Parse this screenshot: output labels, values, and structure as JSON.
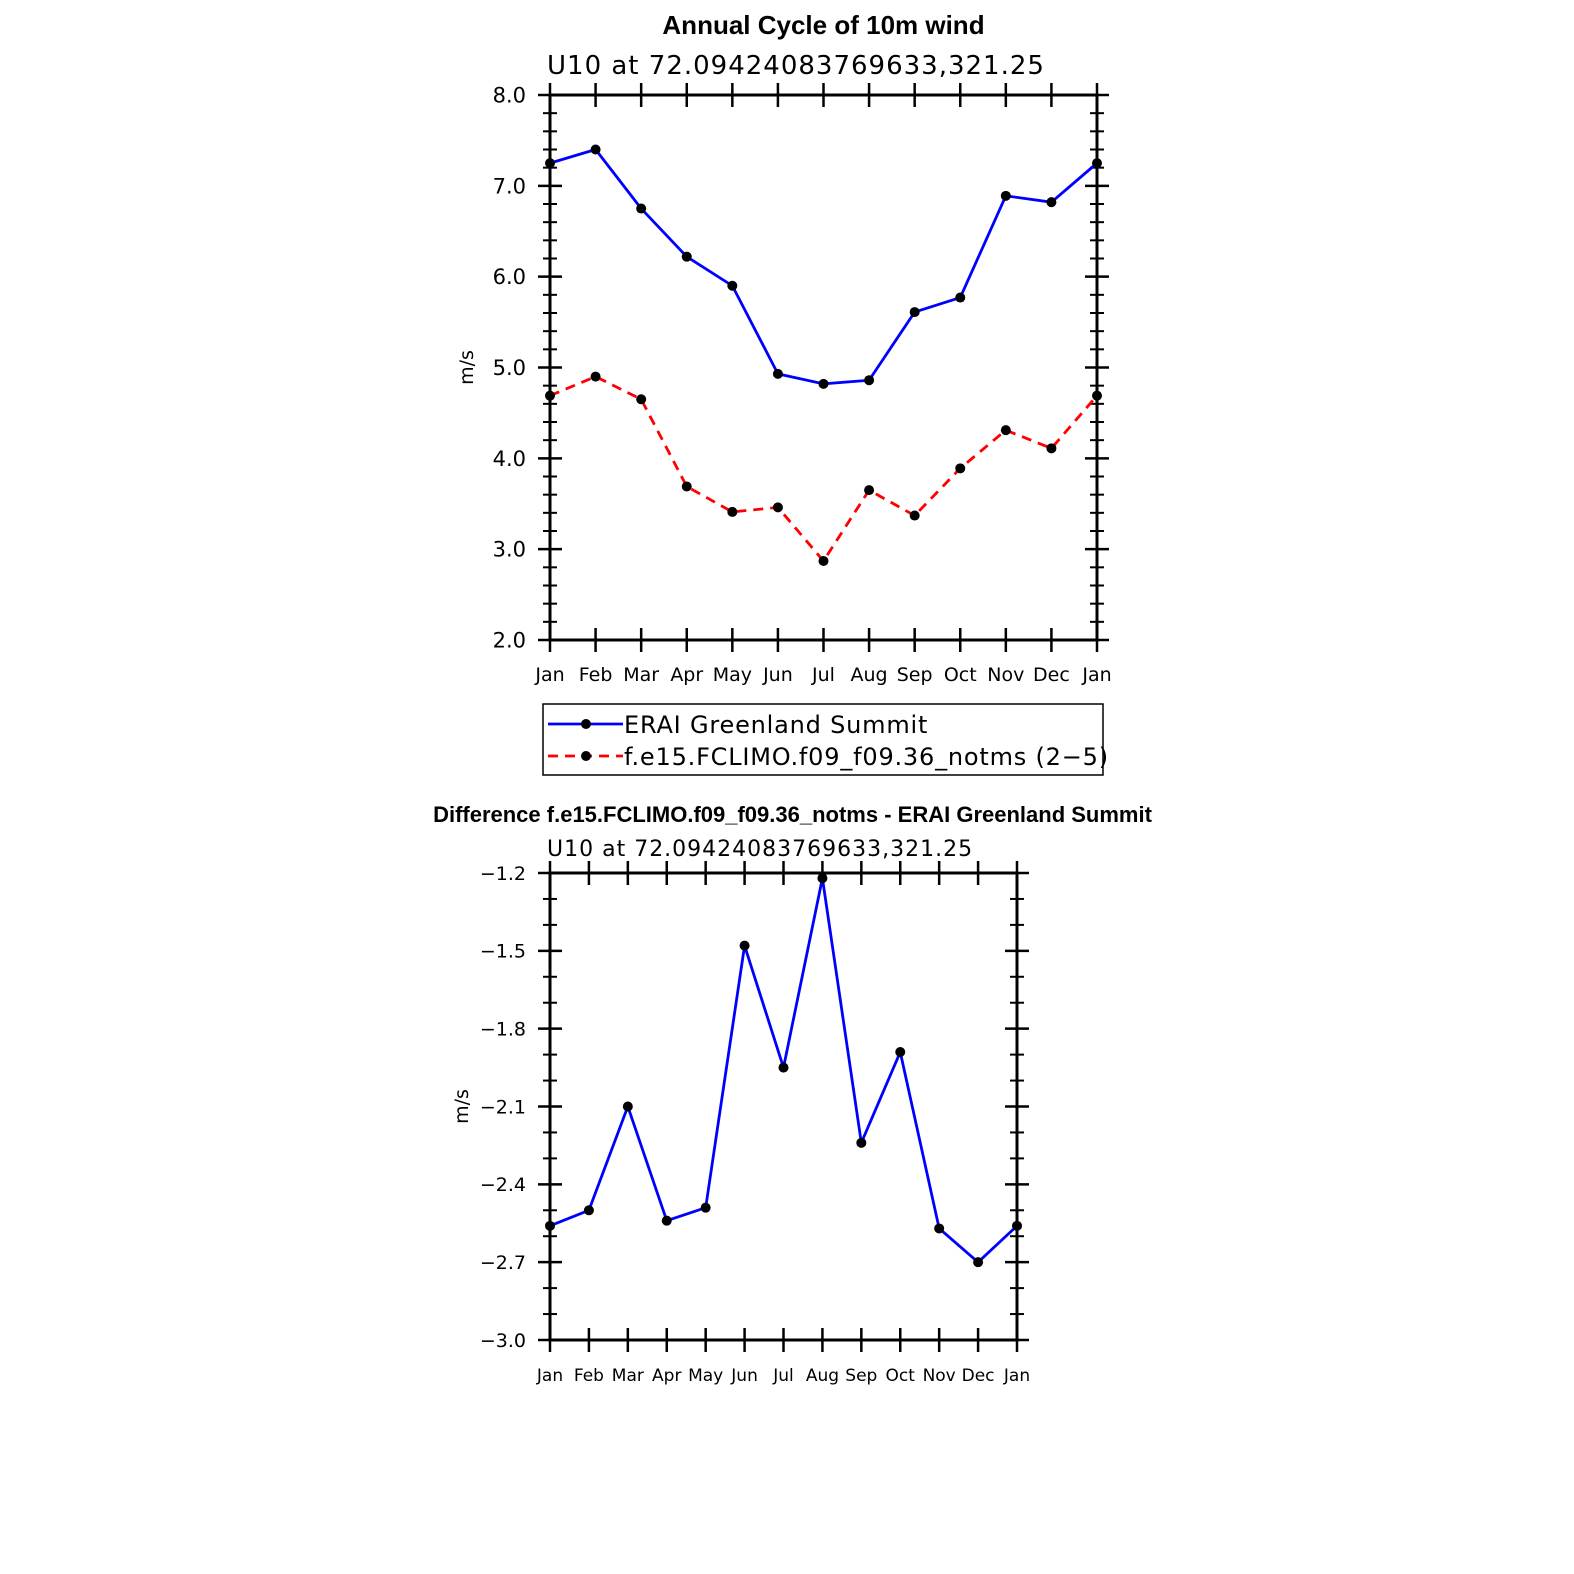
{
  "chart_data": [
    {
      "type": "line",
      "title": "Annual Cycle of 10m wind",
      "subtitle": "U10  at  72.09424083769633,321.25",
      "xlabel": "",
      "ylabel": "m/s",
      "categories": [
        "Jan",
        "Feb",
        "Mar",
        "Apr",
        "May",
        "Jun",
        "Jul",
        "Aug",
        "Sep",
        "Oct",
        "Nov",
        "Dec",
        "Jan"
      ],
      "ylim": [
        2.0,
        8.0
      ],
      "yticks": [
        "2.0",
        "3.0",
        "4.0",
        "5.0",
        "6.0",
        "7.0",
        "8.0"
      ],
      "grid": false,
      "legend_position": "below",
      "series": [
        {
          "name": "ERAI Greenland Summit",
          "color": "#0000ff",
          "dash": "solid",
          "values": [
            7.25,
            7.4,
            6.75,
            6.22,
            5.9,
            4.93,
            4.82,
            4.86,
            5.61,
            5.77,
            6.89,
            6.82,
            7.25
          ]
        },
        {
          "name": "f.e15.FCLIMO.f09_f09.36_notms (2−5)",
          "color": "#ff0000",
          "dash": "dashed",
          "values": [
            4.69,
            4.9,
            4.65,
            3.69,
            3.41,
            3.46,
            2.87,
            3.65,
            3.37,
            3.89,
            4.31,
            4.11,
            4.69
          ]
        }
      ]
    },
    {
      "type": "line",
      "title": "Difference f.e15.FCLIMO.f09_f09.36_notms - ERAI Greenland Summit",
      "subtitle": "U10  at  72.09424083769633,321.25",
      "xlabel": "",
      "ylabel": "m/s",
      "categories": [
        "Jan",
        "Feb",
        "Mar",
        "Apr",
        "May",
        "Jun",
        "Jul",
        "Aug",
        "Sep",
        "Oct",
        "Nov",
        "Dec",
        "Jan"
      ],
      "ylim": [
        -3.0,
        -1.2
      ],
      "yticks": [
        "−3.0",
        "−2.7",
        "−2.4",
        "−2.1",
        "−1.8",
        "−1.5",
        "−1.2"
      ],
      "grid": false,
      "series": [
        {
          "color": "#0000ff",
          "dash": "solid",
          "values": [
            -2.56,
            -2.5,
            -2.1,
            -2.54,
            -2.49,
            -1.48,
            -1.95,
            -1.22,
            -2.24,
            -1.89,
            -2.57,
            -2.7,
            -2.56
          ]
        }
      ]
    }
  ]
}
